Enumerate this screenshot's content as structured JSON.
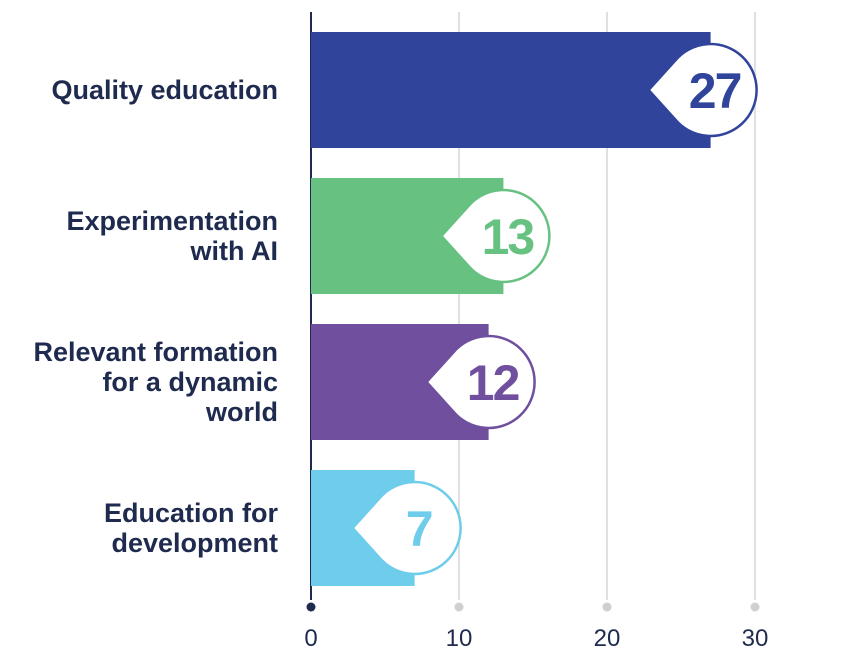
{
  "chart_data": {
    "type": "bar",
    "orientation": "horizontal",
    "categories": [
      [
        "Quality education"
      ],
      [
        "Experimentation",
        "with AI"
      ],
      [
        "Relevant formation",
        "for a dynamic",
        "world"
      ],
      [
        "Education for",
        "development"
      ]
    ],
    "values": [
      27,
      13,
      12,
      7
    ],
    "value_labels": [
      "27",
      "13",
      "12",
      "7"
    ],
    "colors": [
      "#30449c",
      "#67c282",
      "#6f4f9e",
      "#6dcdea"
    ],
    "label_colors": [
      "#30449c",
      "#67c282",
      "#6f4f9e",
      "#6dcdea"
    ],
    "xlim": [
      0,
      30
    ],
    "xticks": [
      0,
      10,
      20,
      30
    ],
    "xtick_labels": [
      "0",
      "10",
      "20",
      "30"
    ],
    "grid": true,
    "legend": "none"
  }
}
